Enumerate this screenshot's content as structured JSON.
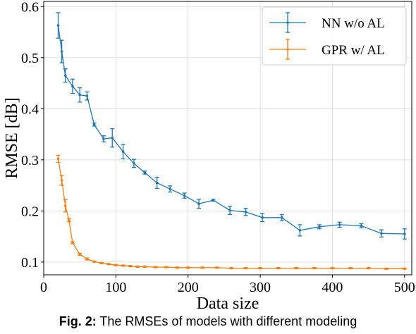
{
  "chart_data": {
    "type": "line",
    "xlabel": "Data size",
    "ylabel": "RMSE [dB]",
    "xlim": [
      0,
      510
    ],
    "ylim": [
      0.075,
      0.61
    ],
    "xticks": [
      0,
      100,
      200,
      300,
      400,
      500
    ],
    "yticks": [
      0.1,
      0.2,
      0.3,
      0.4,
      0.5,
      0.6
    ],
    "grid": true,
    "legend_position": "top-right",
    "series": [
      {
        "name": "NN w/o AL",
        "color": "#1f77b4",
        "x": [
          20,
          25,
          30,
          40,
          50,
          60,
          70,
          83,
          95,
          110,
          125,
          140,
          157,
          175,
          195,
          215,
          235,
          258,
          280,
          303,
          330,
          355,
          382,
          410,
          440,
          468,
          500
        ],
        "y": [
          0.563,
          0.512,
          0.465,
          0.444,
          0.427,
          0.425,
          0.369,
          0.341,
          0.343,
          0.316,
          0.293,
          0.275,
          0.255,
          0.243,
          0.23,
          0.214,
          0.221,
          0.201,
          0.198,
          0.187,
          0.187,
          0.162,
          0.169,
          0.173,
          0.171,
          0.156,
          0.155
        ],
        "err": [
          0.025,
          0.022,
          0.013,
          0.014,
          0.014,
          0.008,
          0.003,
          0.006,
          0.018,
          0.014,
          0.008,
          0.003,
          0.011,
          0.006,
          0.005,
          0.009,
          0.002,
          0.008,
          0.007,
          0.008,
          0.006,
          0.011,
          0.004,
          0.005,
          0.004,
          0.007,
          0.01
        ]
      },
      {
        "name": "GPR w/ AL",
        "color": "#ff7f0e",
        "x": [
          20,
          25,
          30,
          35,
          40,
          50,
          60,
          70,
          80,
          90,
          100,
          110,
          120,
          130,
          140,
          155,
          170,
          185,
          200,
          220,
          240,
          260,
          280,
          300,
          325,
          350,
          375,
          400,
          425,
          450,
          475,
          500
        ],
        "y": [
          0.302,
          0.26,
          0.21,
          0.182,
          0.138,
          0.115,
          0.106,
          0.101,
          0.098,
          0.096,
          0.094,
          0.093,
          0.092,
          0.091,
          0.091,
          0.09,
          0.09,
          0.089,
          0.089,
          0.089,
          0.089,
          0.088,
          0.088,
          0.088,
          0.088,
          0.088,
          0.088,
          0.088,
          0.088,
          0.088,
          0.087,
          0.087
        ],
        "err": [
          0.007,
          0.01,
          0.012,
          0.003,
          0.002,
          0.002,
          0.002,
          0.001,
          0.001,
          0.001,
          0.001,
          0.001,
          0.001,
          0.001,
          0.001,
          0.001,
          0.001,
          0.001,
          0.001,
          0.001,
          0.001,
          0.001,
          0.001,
          0.001,
          0.001,
          0.001,
          0.001,
          0.001,
          0.001,
          0.001,
          0.001,
          0.001
        ]
      }
    ]
  },
  "caption": {
    "prefix": "Fig. 2:",
    "text": " The RMSEs of models with different modeling"
  }
}
